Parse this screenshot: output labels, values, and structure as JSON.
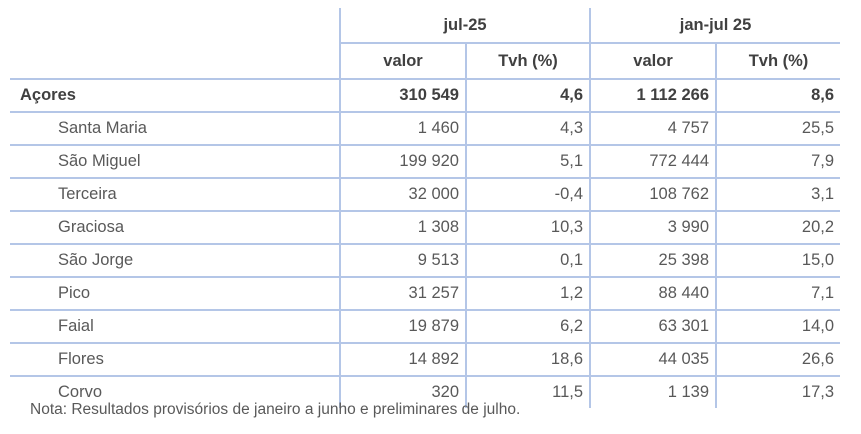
{
  "header": {
    "groups": [
      "jul-25",
      "jan-jul 25"
    ],
    "subcols": [
      "valor",
      "Tvh (%)",
      "valor",
      "Tvh (%)"
    ]
  },
  "rows": [
    {
      "label": "Açores",
      "values": [
        "310 549",
        "4,6",
        "1 112 266",
        "8,6"
      ]
    },
    {
      "label": "Santa Maria",
      "values": [
        "1 460",
        "4,3",
        "4 757",
        "25,5"
      ]
    },
    {
      "label": "São Miguel",
      "values": [
        "199 920",
        "5,1",
        "772 444",
        "7,9"
      ]
    },
    {
      "label": "Terceira",
      "values": [
        "32 000",
        "-0,4",
        "108 762",
        "3,1"
      ]
    },
    {
      "label": "Graciosa",
      "values": [
        "1 308",
        "10,3",
        "3 990",
        "20,2"
      ]
    },
    {
      "label": "São Jorge",
      "values": [
        "9 513",
        "0,1",
        "25 398",
        "15,0"
      ]
    },
    {
      "label": "Pico",
      "values": [
        "31 257",
        "1,2",
        "88 440",
        "7,1"
      ]
    },
    {
      "label": "Faial",
      "values": [
        "19 879",
        "6,2",
        "63 301",
        "14,0"
      ]
    },
    {
      "label": "Flores",
      "values": [
        "14 892",
        "18,6",
        "44 035",
        "26,6"
      ]
    },
    {
      "label": "Corvo",
      "values": [
        "320",
        "11,5",
        "1 139",
        "17,3"
      ]
    }
  ],
  "note": "Nota: Resultados provisórios de janeiro a junho e preliminares de julho."
}
